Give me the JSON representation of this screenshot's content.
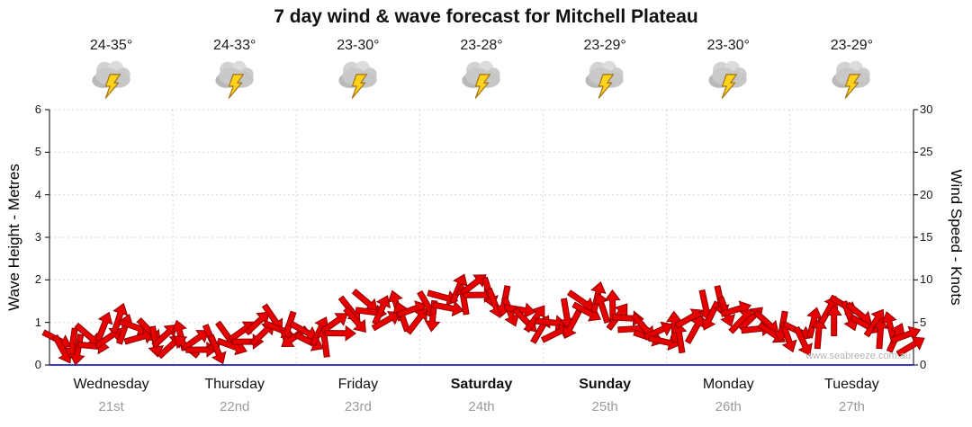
{
  "title": "7 day wind & wave forecast for Mitchell Plateau",
  "watermark": "www.seabreeze.com.au",
  "days": [
    {
      "name": "Wednesday",
      "date": "21st",
      "temp": "24-35°",
      "weekend": false
    },
    {
      "name": "Thursday",
      "date": "22nd",
      "temp": "24-33°",
      "weekend": false
    },
    {
      "name": "Friday",
      "date": "23rd",
      "temp": "23-30°",
      "weekend": false
    },
    {
      "name": "Saturday",
      "date": "24th",
      "temp": "23-28°",
      "weekend": true
    },
    {
      "name": "Sunday",
      "date": "25th",
      "temp": "23-29°",
      "weekend": true
    },
    {
      "name": "Monday",
      "date": "26th",
      "temp": "23-30°",
      "weekend": false
    },
    {
      "name": "Tuesday",
      "date": "27th",
      "temp": "23-29°",
      "weekend": false
    }
  ],
  "chart_data": {
    "type": "area",
    "title": "7 day wind & wave forecast for Mitchell Plateau",
    "categories": [
      "Wednesday",
      "Thursday",
      "Friday",
      "Saturday",
      "Sunday",
      "Monday",
      "Tuesday"
    ],
    "samples_per_day": 8,
    "series": [
      {
        "name": "Wind Speed",
        "unit": "knots",
        "marker": "red wind arrows",
        "values": [
          3,
          2.5,
          3.5,
          4.5,
          5.5,
          4.5,
          4,
          3.5,
          3.5,
          3,
          3,
          3.5,
          4,
          5,
          5.5,
          4.5,
          4,
          4,
          5,
          6.5,
          7.5,
          6.5,
          7,
          6.5,
          7,
          8,
          9,
          9.5,
          8.5,
          7.5,
          6.5,
          5.5,
          5,
          6,
          7.5,
          8,
          7,
          5.5,
          4.5,
          4,
          4.5,
          5.5,
          7,
          7.5,
          6.5,
          5.5,
          5,
          4.5,
          4,
          5,
          6.5,
          7,
          6,
          5,
          4.5,
          3.5
        ]
      }
    ],
    "y_left": {
      "label": "Wave Height - Metres",
      "lim": [
        0,
        6
      ],
      "ticks": [
        0,
        1,
        2,
        3,
        4,
        5,
        6
      ]
    },
    "y_right": {
      "label": "Wind Speed - Knots",
      "lim": [
        0,
        30
      ],
      "ticks": [
        0,
        5,
        10,
        15,
        20,
        25,
        30
      ]
    },
    "grid": true,
    "legend": "none"
  },
  "colors": {
    "wind_fill": "#e60000",
    "wind_stroke": "#8f0000",
    "x_axis": "#3a3ac8",
    "gridline": "#d5d5d5",
    "lightning": "#ffd21c",
    "cloud": "#c9c9c9"
  }
}
